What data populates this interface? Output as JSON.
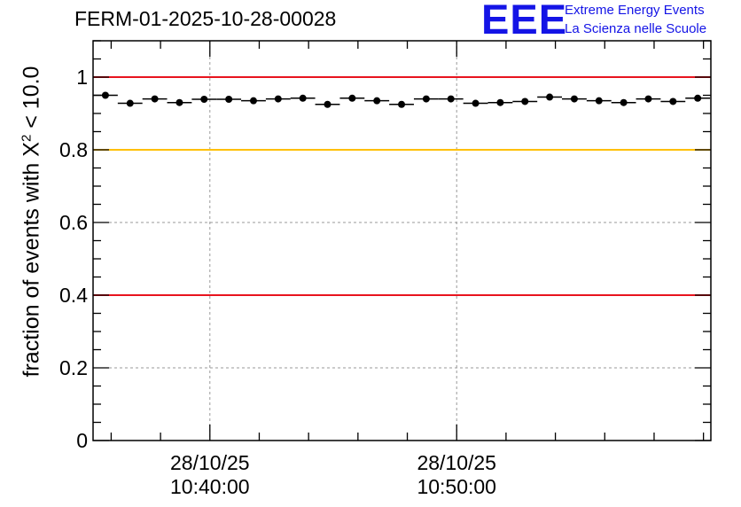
{
  "chart_data": {
    "type": "scatter",
    "title": "FERM-01-2025-10-28-00028",
    "ylabel_pre": "fraction of events with ",
    "ylabel_sym": "X",
    "ylabel_sup": "2",
    "ylabel_post": " < 10.0",
    "xlabel": "",
    "x_axis": {
      "kind": "time",
      "min_seconds": 2116,
      "max_seconds": 3618,
      "tick_labels": [
        {
          "seconds": 2400,
          "date": "28/10/25",
          "time": "10:40:00"
        },
        {
          "seconds": 3000,
          "date": "28/10/25",
          "time": "10:50:00"
        }
      ]
    },
    "ylim": [
      0,
      1.1
    ],
    "y_ticks": [
      0,
      0.2,
      0.4,
      0.6,
      0.8,
      1
    ],
    "y_tick_labels": [
      "0",
      "0.2",
      "0.4",
      "0.6",
      "0.8",
      "1"
    ],
    "grid": true,
    "reference_lines": [
      {
        "y": 1.0,
        "color": "#e8141e"
      },
      {
        "y": 0.8,
        "color": "#ffc000"
      },
      {
        "y": 0.4,
        "color": "#e8141e"
      }
    ],
    "bin_width_seconds": 60,
    "series": [
      {
        "marker": "circle",
        "color": "#000000",
        "x_seconds": [
          2146,
          2206,
          2266,
          2326,
          2386,
          2446,
          2506,
          2566,
          2626,
          2686,
          2746,
          2806,
          2866,
          2926,
          2986,
          3046,
          3106,
          3166,
          3226,
          3286,
          3346,
          3406,
          3466,
          3526,
          3586
        ],
        "values": [
          0.95,
          0.928,
          0.94,
          0.93,
          0.939,
          0.939,
          0.935,
          0.94,
          0.942,
          0.925,
          0.942,
          0.935,
          0.925,
          0.94,
          0.94,
          0.928,
          0.93,
          0.933,
          0.945,
          0.94,
          0.935,
          0.93,
          0.94,
          0.933,
          0.942
        ]
      }
    ]
  },
  "logo": {
    "mark": "EEE",
    "line1": "Extreme Energy Events",
    "line2": "La Scienza nelle Scuole",
    "color": "#1414e6"
  }
}
